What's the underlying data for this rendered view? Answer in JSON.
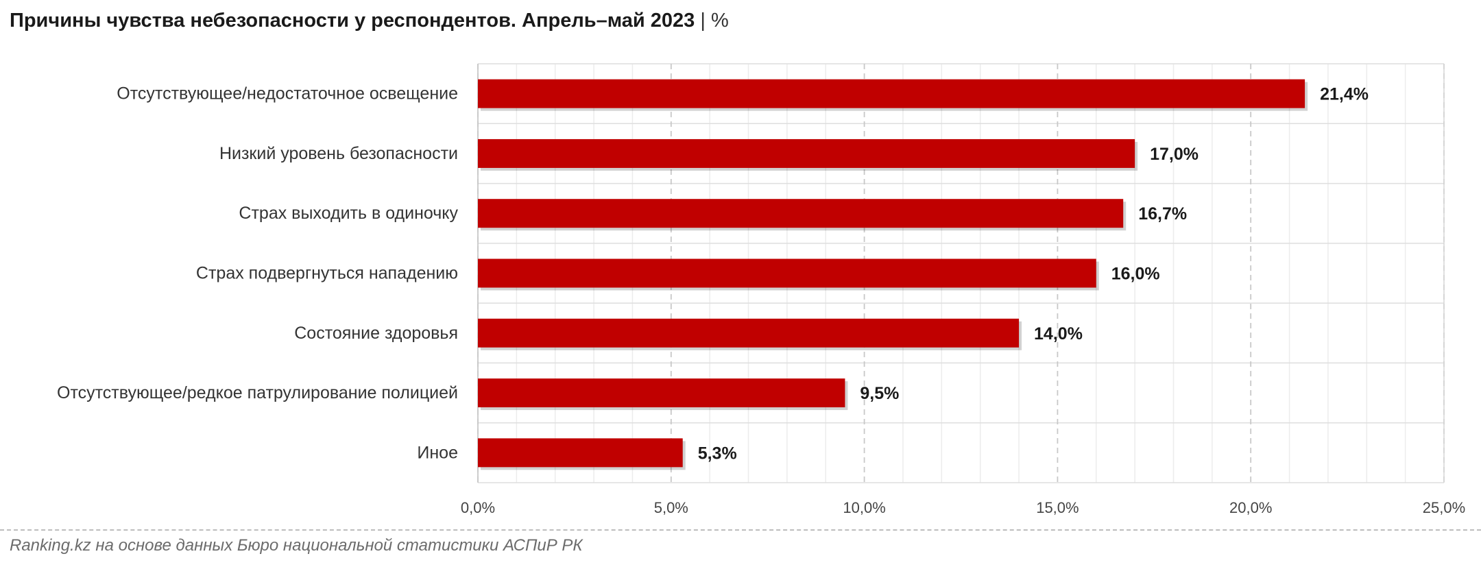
{
  "title": {
    "main": "Причины чувства небезопасности у респондентов. Апрель–май 2023",
    "sep": "|",
    "unit": "%"
  },
  "chart_data": {
    "type": "bar",
    "orientation": "horizontal",
    "categories": [
      "Отсутствующее/недостаточное освещение",
      "Низкий уровень безопасности",
      "Страх выходить в одиночку",
      "Страх подвергнуться нападению",
      "Состояние здоровья",
      "Отсутствующее/редкое патрулирование полицией",
      "Иное"
    ],
    "values": [
      21.4,
      17.0,
      16.7,
      16.0,
      14.0,
      9.5,
      5.3
    ],
    "data_labels": [
      "21,4%",
      "17,0%",
      "16,7%",
      "16,0%",
      "14,0%",
      "9,5%",
      "5,3%"
    ],
    "xlim": [
      0,
      25
    ],
    "x_ticks": [
      0,
      5,
      10,
      15,
      20,
      25
    ],
    "x_tick_labels": [
      "0,0%",
      "5,0%",
      "10,0%",
      "15,0%",
      "20,0%",
      "25,0%"
    ],
    "bar_color": "#c00000",
    "grid": true
  },
  "source": "Ranking.kz на основе данных Бюро национальной статистики АСПиР РК"
}
